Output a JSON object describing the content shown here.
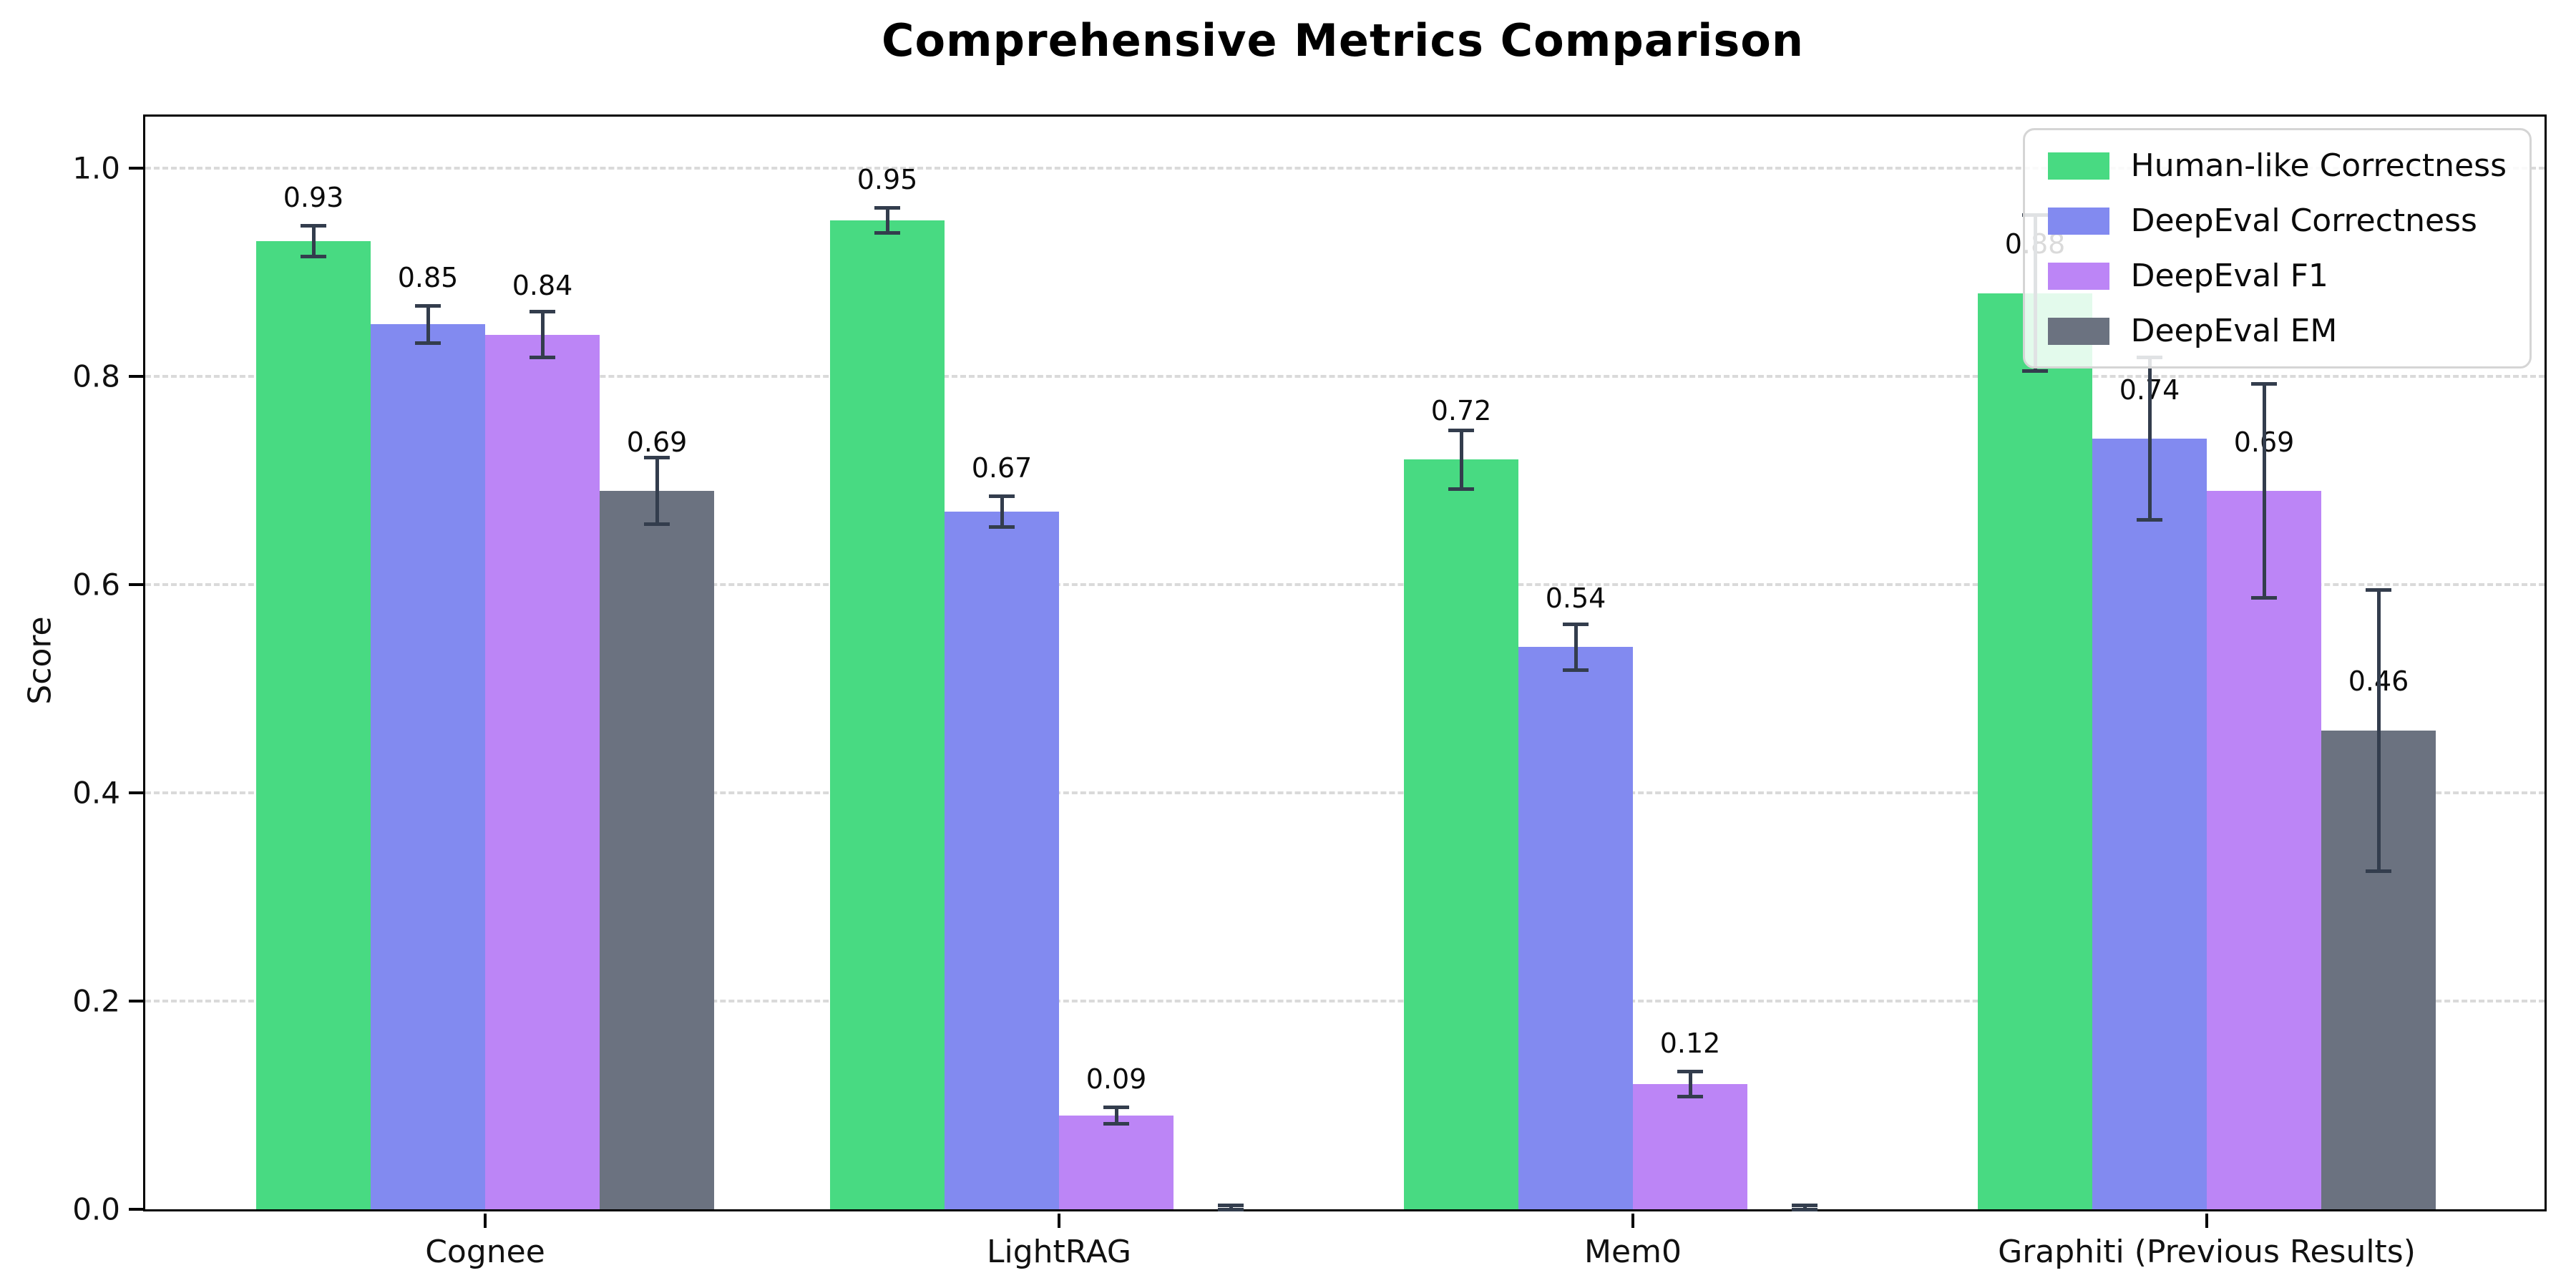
{
  "chart_data": {
    "type": "bar",
    "title": "Comprehensive Metrics Comparison",
    "ylabel": "Score",
    "xlabel": "",
    "categories": [
      "Cognee",
      "LightRAG",
      "Mem0",
      "Graphiti (Previous Results)"
    ],
    "series": [
      {
        "name": "Human-like Correctness",
        "color": "#48da82",
        "values": [
          0.93,
          0.95,
          0.72,
          0.88
        ],
        "errors": [
          0.015,
          0.012,
          0.028,
          0.075
        ],
        "labels": [
          "0.93",
          "0.95",
          "0.72",
          "0.88"
        ]
      },
      {
        "name": "DeepEval Correctness",
        "color": "#828af0",
        "values": [
          0.85,
          0.67,
          0.54,
          0.74
        ],
        "errors": [
          0.018,
          0.015,
          0.022,
          0.078
        ],
        "labels": [
          "0.85",
          "0.67",
          "0.54",
          "0.74"
        ]
      },
      {
        "name": "DeepEval F1",
        "color": "#bc85f6",
        "values": [
          0.84,
          0.09,
          0.12,
          0.69
        ],
        "errors": [
          0.022,
          0.008,
          0.012,
          0.103
        ],
        "labels": [
          "0.84",
          "0.09",
          "0.12",
          "0.69"
        ]
      },
      {
        "name": "DeepEval EM",
        "color": "#6b7280",
        "values": [
          0.69,
          0.0,
          0.0,
          0.46
        ],
        "errors": [
          0.032,
          0.004,
          0.004,
          0.135
        ],
        "labels": [
          "0.69",
          "",
          "",
          "0.46"
        ]
      }
    ],
    "yticks": {
      "values": [
        0.0,
        0.2,
        0.4,
        0.6,
        0.8,
        1.0
      ],
      "labels": [
        "0.0",
        "0.2",
        "0.4",
        "0.6",
        "0.8",
        "1.0"
      ]
    },
    "ylim": [
      0,
      1.05
    ],
    "grid": "dashed-horizontal",
    "gridline_color": "#dadada",
    "legend_position": "upper-right",
    "error_bar_color": "#333d4d",
    "axis_color": "#000000",
    "background_color": "#ffffff"
  }
}
